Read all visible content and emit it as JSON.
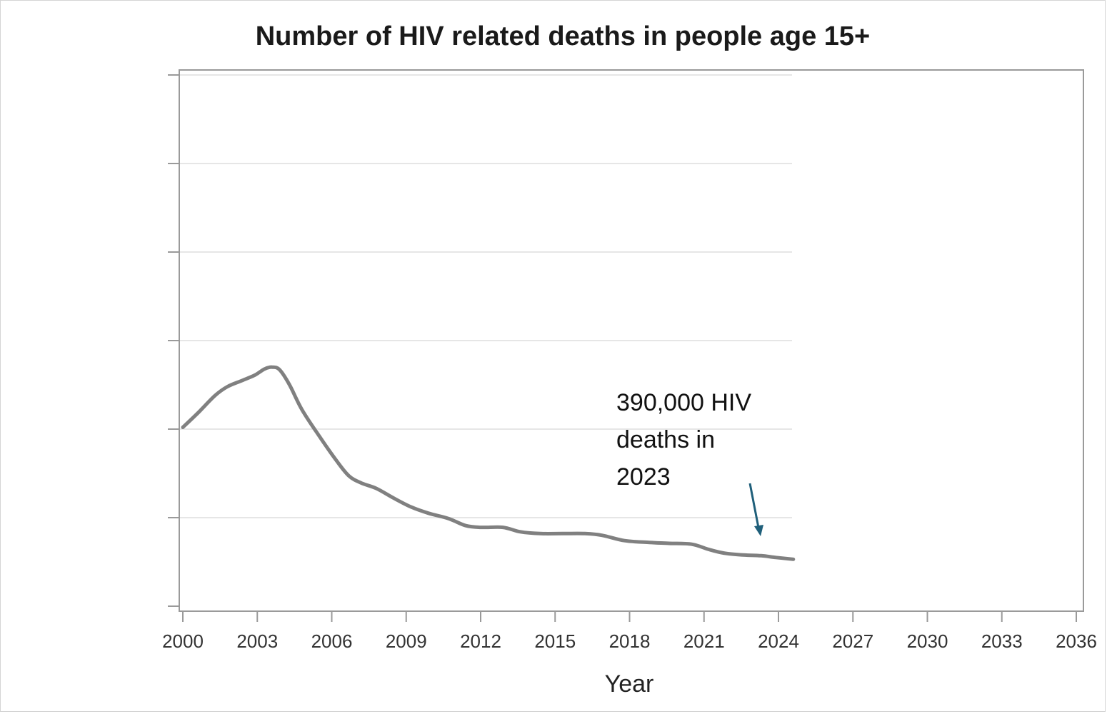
{
  "chart_data": {
    "type": "line",
    "title": "Number of HIV related deaths in people age 15+",
    "xlabel": "Year",
    "ylabel": "",
    "xlim": [
      2000,
      2036
    ],
    "x_ticks": [
      "2000",
      "2003",
      "2006",
      "2009",
      "2012",
      "2015",
      "2018",
      "2021",
      "2024",
      "2027",
      "2030",
      "2033",
      "2036"
    ],
    "y_tick_count": 7,
    "grid": "horizontal",
    "series": [
      {
        "color": "#808080",
        "points": [
          [
            2000,
            2.02
          ],
          [
            2000.6,
            2.18
          ],
          [
            2001.3,
            2.38
          ],
          [
            2001.8,
            2.48
          ],
          [
            2002.4,
            2.55
          ],
          [
            2002.9,
            2.61
          ],
          [
            2003.3,
            2.68
          ],
          [
            2003.6,
            2.7
          ],
          [
            2003.9,
            2.67
          ],
          [
            2004.3,
            2.5
          ],
          [
            2004.8,
            2.22
          ],
          [
            2005.5,
            1.92
          ],
          [
            2006.2,
            1.64
          ],
          [
            2006.7,
            1.47
          ],
          [
            2007.2,
            1.39
          ],
          [
            2007.8,
            1.33
          ],
          [
            2008.5,
            1.22
          ],
          [
            2009.2,
            1.12
          ],
          [
            2009.9,
            1.05
          ],
          [
            2010.7,
            0.99
          ],
          [
            2011.4,
            0.91
          ],
          [
            2012.0,
            0.89
          ],
          [
            2012.9,
            0.89
          ],
          [
            2013.6,
            0.84
          ],
          [
            2014.4,
            0.82
          ],
          [
            2015.3,
            0.82
          ],
          [
            2016.2,
            0.82
          ],
          [
            2016.9,
            0.8
          ],
          [
            2017.8,
            0.74
          ],
          [
            2018.8,
            0.72
          ],
          [
            2019.6,
            0.71
          ],
          [
            2020.5,
            0.7
          ],
          [
            2021.2,
            0.64
          ],
          [
            2021.8,
            0.6
          ],
          [
            2022.5,
            0.58
          ],
          [
            2023.3,
            0.57
          ],
          [
            2023.9,
            0.55
          ],
          [
            2024.6,
            0.53
          ]
        ]
      }
    ],
    "annotations": [
      {
        "text_lines": [
          "390,000 HIV",
          "deaths in",
          "2023"
        ],
        "points_to_year": 2023,
        "arrow_color": "#1f5f7a"
      }
    ]
  }
}
